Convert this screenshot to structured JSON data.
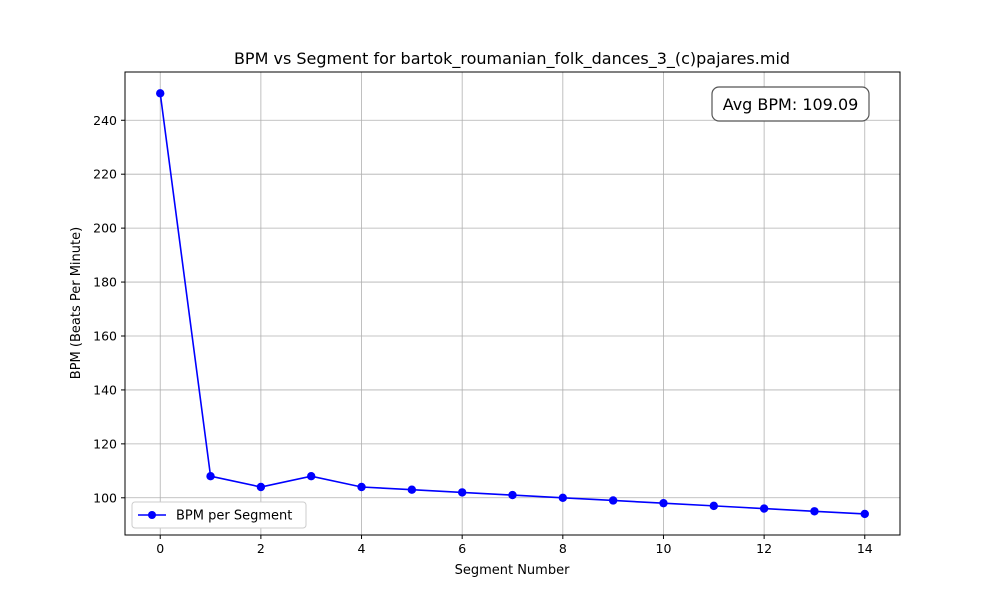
{
  "chart_data": {
    "type": "line",
    "title": "BPM vs Segment for bartok_roumanian_folk_dances_3_(c)pajares.mid",
    "xlabel": "Segment Number",
    "ylabel": "BPM (Beats Per Minute)",
    "xlim": [
      -0.7,
      14.7
    ],
    "ylim": [
      86.2,
      257.9
    ],
    "xticks": [
      0,
      2,
      4,
      6,
      8,
      10,
      12,
      14
    ],
    "yticks": [
      100,
      120,
      140,
      160,
      180,
      200,
      220,
      240
    ],
    "grid": true,
    "legend_position": "lower-left",
    "series": [
      {
        "name": "BPM per Segment",
        "color": "#0000ff",
        "marker": "circle",
        "x": [
          0,
          1,
          2,
          3,
          4,
          5,
          6,
          7,
          8,
          9,
          10,
          11,
          12,
          13,
          14
        ],
        "y": [
          250,
          108,
          104,
          108,
          104,
          103,
          102,
          101,
          100,
          99,
          98,
          97,
          96,
          95,
          94
        ]
      }
    ],
    "annotation": {
      "text": "Avg BPM: 109.09",
      "position": "top-right"
    }
  }
}
